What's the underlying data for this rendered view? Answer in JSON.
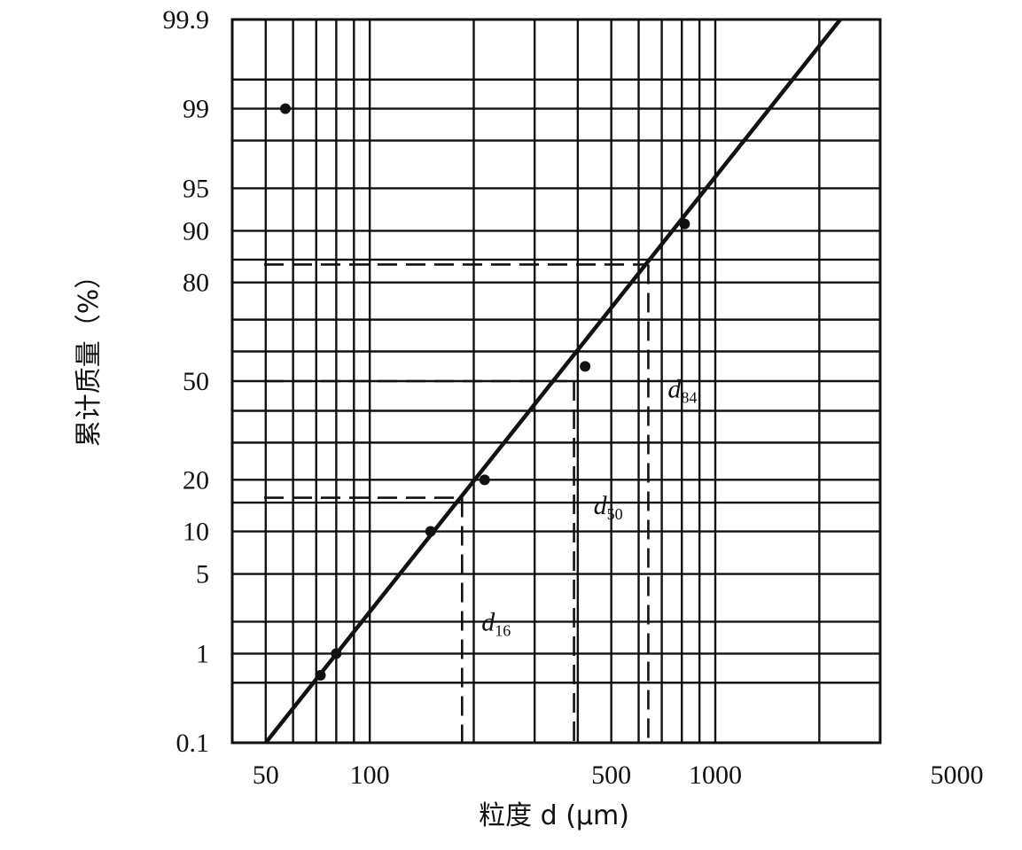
{
  "chart_data": {
    "type": "line",
    "title": "",
    "xlabel": "粒度 d (μm)",
    "ylabel": "累计质量（%）",
    "x_scale": "log",
    "y_scale": "probability",
    "xlim": [
      40,
      3000
    ],
    "ylim": [
      0.1,
      99.9
    ],
    "x_tick_labels": [
      "50",
      "100",
      "500",
      "1000",
      "5000"
    ],
    "x_ticks": [
      50,
      100,
      500,
      1000,
      5000
    ],
    "y_tick_labels": [
      "0.1",
      "1",
      "5",
      "10",
      "20",
      "50",
      "80",
      "90",
      "95",
      "99",
      "99.9"
    ],
    "y_ticks": [
      0.1,
      1,
      5,
      10,
      20,
      50,
      80,
      90,
      95,
      99,
      99.9
    ],
    "grid": true,
    "series": [
      {
        "x": [
          50,
          2300
        ],
        "y": [
          0.1,
          99.9
        ]
      }
    ],
    "points": [
      {
        "x": 57,
        "y": 99
      },
      {
        "x": 72,
        "y": 0.6
      },
      {
        "x": 80,
        "y": 1
      },
      {
        "x": 150,
        "y": 10
      },
      {
        "x": 215,
        "y": 20
      },
      {
        "x": 420,
        "y": 55
      },
      {
        "x": 815,
        "y": 91
      }
    ],
    "annotations": [
      {
        "label": "d",
        "sub": "16",
        "x": 185,
        "y": 16
      },
      {
        "label": "d",
        "sub": "50",
        "x": 390,
        "y": 50
      },
      {
        "label": "d",
        "sub": "84",
        "x": 640,
        "y": 84
      }
    ]
  }
}
